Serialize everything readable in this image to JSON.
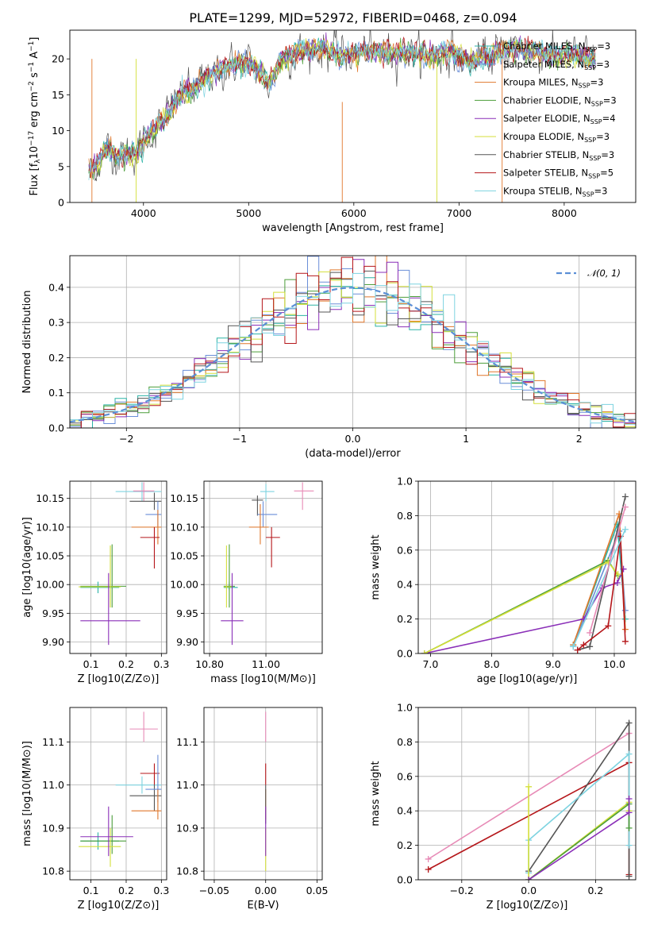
{
  "figure": {
    "title": "PLATE=1299, MJD=52972, FIBERID=0468, z=0.094"
  },
  "colors": {
    "Chabrier MILES": "#2bb3a6",
    "Salpeter MILES": "#6a8ed8",
    "Kroupa MILES": "#e0772b",
    "Chabrier ELODIE": "#4c9e3a",
    "Salpeter ELODIE": "#8a2fb8",
    "Kroupa ELODIE": "#d4df3a",
    "Chabrier STELIB": "#555555",
    "Salpeter STELIB": "#b5161a",
    "Kroupa STELIB": "#7dd3e0",
    "pink": "#e78ab6",
    "normal": "#5b8fd6"
  },
  "chart_data": [
    {
      "id": "spectrum",
      "type": "line",
      "title": "PLATE=1299, MJD=52972, FIBERID=0468, z=0.094",
      "xlabel": "wavelength [Angstrom, rest frame]",
      "ylabel": "Flux [f_λ 10^-17 erg cm^-2 s^-1 A^-1]",
      "xlim": [
        3300,
        8680
      ],
      "ylim": [
        0,
        24
      ],
      "xticks": [
        4000,
        5000,
        6000,
        7000,
        8000
      ],
      "yticks": [
        0,
        5,
        10,
        15,
        20
      ],
      "grid": false,
      "legend_position": "top-right",
      "spectrum_shape": {
        "x": [
          3480,
          3550,
          3650,
          3750,
          3850,
          3950,
          4000,
          4100,
          4200,
          4300,
          4400,
          4500,
          4600,
          4700,
          4800,
          4900,
          5000,
          5100,
          5200,
          5300,
          5500,
          5700,
          5900,
          6100,
          6300,
          6500,
          6700,
          6900,
          7100,
          7300,
          7500,
          7700,
          7900,
          8100,
          8300
        ],
        "y": [
          4.5,
          5.0,
          7.5,
          6.5,
          6.8,
          7.0,
          8.5,
          10.0,
          11.5,
          14.0,
          15.5,
          16.0,
          17.5,
          18.0,
          19.0,
          19.5,
          19.5,
          18.0,
          16.5,
          20.0,
          21.0,
          21.5,
          20.5,
          21.0,
          21.0,
          21.0,
          20.5,
          21.0,
          19.5,
          20.5,
          21.5,
          21.0,
          20.5,
          20.5,
          20.0
        ]
      },
      "series": [
        {
          "name": "Chabrier MILES, N_SSP=3"
        },
        {
          "name": "Salpeter MILES, N_SSP=3"
        },
        {
          "name": "Kroupa MILES, N_SSP=3"
        },
        {
          "name": "Chabrier ELODIE, N_SSP=3"
        },
        {
          "name": "Salpeter ELODIE, N_SSP=4"
        },
        {
          "name": "Kroupa ELODIE, N_SSP=3"
        },
        {
          "name": "Chabrier STELIB, N_SSP=3"
        },
        {
          "name": "Salpeter STELIB, N_SSP=5"
        },
        {
          "name": "Kroupa STELIB, N_SSP=3"
        }
      ]
    },
    {
      "id": "residuals",
      "type": "line",
      "xlabel": "(data-model)/error",
      "ylabel": "Normed distribution",
      "xlim": [
        -2.5,
        2.5
      ],
      "ylim": [
        0,
        0.49
      ],
      "xticks": [
        -2,
        -1,
        0,
        1,
        2
      ],
      "yticks": [
        0.0,
        0.1,
        0.2,
        0.3,
        0.4
      ],
      "grid": true,
      "legend_position": "top-right",
      "legend": "𝒩(0, 1)",
      "bin_width": 0.1
    },
    {
      "id": "z-age",
      "type": "scatter",
      "xlabel": "Z [log10(Z/Z⊙)]",
      "ylabel": "age [log10(age/yr)]",
      "xlim": [
        0.04,
        0.315
      ],
      "ylim": [
        9.88,
        10.18
      ],
      "xticks": [
        0.1,
        0.2,
        0.3
      ],
      "yticks": [
        9.9,
        9.95,
        10.0,
        10.05,
        10.1,
        10.15
      ],
      "grid": true,
      "points": [
        {
          "model": "Kroupa STELIB",
          "x": 0.245,
          "y": 10.162,
          "xerr": [
            0.17,
            0.3
          ],
          "yerr": [
            10.145,
            10.178
          ]
        },
        {
          "model": "pink",
          "x": 0.25,
          "y": 10.163,
          "xerr": [
            0.22,
            0.28
          ],
          "yerr": [
            10.145,
            10.178
          ]
        },
        {
          "model": "Chabrier STELIB",
          "x": 0.28,
          "y": 10.145,
          "xerr": [
            0.21,
            0.3
          ],
          "yerr": [
            10.13,
            10.16
          ]
        },
        {
          "model": "Salpeter MILES",
          "x": 0.29,
          "y": 10.122,
          "xerr": [
            0.255,
            0.3
          ],
          "yerr": [
            10.1,
            10.145
          ]
        },
        {
          "model": "Kroupa MILES",
          "x": 0.29,
          "y": 10.1,
          "xerr": [
            0.215,
            0.3
          ],
          "yerr": [
            10.07,
            10.13
          ]
        },
        {
          "model": "Salpeter STELIB",
          "x": 0.28,
          "y": 10.082,
          "xerr": [
            0.24,
            0.295
          ],
          "yerr": [
            10.028,
            10.1
          ]
        },
        {
          "model": "Chabrier MILES",
          "x": 0.12,
          "y": 9.995,
          "xerr": [
            0.07,
            0.18
          ],
          "yerr": [
            9.985,
            10.005
          ]
        },
        {
          "model": "Chabrier ELODIE",
          "x": 0.16,
          "y": 9.997,
          "xerr": [
            0.07,
            0.2
          ],
          "yerr": [
            9.96,
            10.07
          ]
        },
        {
          "model": "Kroupa ELODIE",
          "x": 0.155,
          "y": 9.996,
          "xerr": [
            0.065,
            0.185
          ],
          "yerr": [
            9.96,
            10.068
          ]
        },
        {
          "model": "Salpeter ELODIE",
          "x": 0.15,
          "y": 9.937,
          "xerr": [
            0.07,
            0.24
          ],
          "yerr": [
            9.895,
            10.02
          ]
        }
      ]
    },
    {
      "id": "mass-age",
      "type": "scatter",
      "xlabel": "mass [log10(M/M⊙)]",
      "ylabel": "",
      "xlim": [
        10.78,
        11.2
      ],
      "ylim": [
        9.88,
        10.18
      ],
      "xticks": [
        10.8,
        11.0
      ],
      "yticks": [
        9.9,
        9.95,
        10.0,
        10.05,
        10.1,
        10.15
      ],
      "grid": true,
      "points": [
        {
          "model": "pink",
          "x": 11.13,
          "y": 10.163,
          "xerr": [
            11.1,
            11.17
          ],
          "yerr": [
            10.13,
            10.178
          ]
        },
        {
          "model": "Kroupa STELIB",
          "x": 11.0,
          "y": 10.162,
          "xerr": [
            10.98,
            11.03
          ],
          "yerr": [
            10.145,
            10.175
          ]
        },
        {
          "model": "Chabrier STELIB",
          "x": 10.97,
          "y": 10.147,
          "xerr": [
            10.95,
            10.99
          ],
          "yerr": [
            10.12,
            10.155
          ]
        },
        {
          "model": "Salpeter MILES",
          "x": 10.99,
          "y": 10.122,
          "xerr": [
            10.97,
            11.04
          ],
          "yerr": [
            10.1,
            10.145
          ]
        },
        {
          "model": "Kroupa MILES",
          "x": 10.98,
          "y": 10.1,
          "xerr": [
            10.94,
            11.01
          ],
          "yerr": [
            10.07,
            10.14
          ]
        },
        {
          "model": "Salpeter STELIB",
          "x": 11.02,
          "y": 10.082,
          "xerr": [
            11.0,
            11.05
          ],
          "yerr": [
            10.03,
            10.1
          ]
        },
        {
          "model": "Chabrier MILES",
          "x": 10.87,
          "y": 9.995,
          "xerr": [
            10.85,
            10.9
          ],
          "yerr": [
            9.99,
            10.005
          ]
        },
        {
          "model": "Chabrier ELODIE",
          "x": 10.87,
          "y": 9.997,
          "xerr": [
            10.85,
            10.89
          ],
          "yerr": [
            9.96,
            10.07
          ]
        },
        {
          "model": "Kroupa ELODIE",
          "x": 10.86,
          "y": 9.996,
          "xerr": [
            10.85,
            10.88
          ],
          "yerr": [
            9.96,
            10.068
          ]
        },
        {
          "model": "Salpeter ELODIE",
          "x": 10.88,
          "y": 9.937,
          "xerr": [
            10.84,
            10.92
          ],
          "yerr": [
            9.895,
            10.02
          ]
        }
      ]
    },
    {
      "id": "age-weight",
      "type": "line",
      "xlabel": "age [log10(age/yr)]",
      "ylabel": "mass weight",
      "xlim": [
        6.8,
        10.35
      ],
      "ylim": [
        0,
        1.0
      ],
      "xticks": [
        7,
        8,
        9,
        10
      ],
      "yticks": [
        0.0,
        0.2,
        0.4,
        0.6,
        0.8,
        1.0
      ],
      "grid": true,
      "series": [
        {
          "model": "Chabrier MILES",
          "x": [
            9.33,
            10.05,
            10.18
          ],
          "y": [
            0.05,
            0.75,
            0.2
          ]
        },
        {
          "model": "Salpeter MILES",
          "x": [
            9.33,
            10.08,
            10.18
          ],
          "y": [
            0.04,
            0.71,
            0.25
          ]
        },
        {
          "model": "Kroupa MILES",
          "x": [
            9.33,
            10.08,
            10.18
          ],
          "y": [
            0.05,
            0.81,
            0.14
          ]
        },
        {
          "model": "Chabrier ELODIE",
          "x": [
            6.9,
            9.9,
            10.06
          ],
          "y": [
            0.0,
            0.54,
            0.45
          ]
        },
        {
          "model": "Salpeter ELODIE",
          "x": [
            6.9,
            9.5,
            9.8,
            10.05,
            10.15
          ],
          "y": [
            0.0,
            0.2,
            0.38,
            0.41,
            0.49
          ]
        },
        {
          "model": "Kroupa ELODIE",
          "x": [
            6.9,
            9.9,
            10.06
          ],
          "y": [
            0.0,
            0.53,
            0.46
          ]
        },
        {
          "model": "Chabrier STELIB",
          "x": [
            9.4,
            9.6,
            10.18
          ],
          "y": [
            0.02,
            0.04,
            0.91
          ]
        },
        {
          "model": "Salpeter STELIB",
          "x": [
            9.4,
            9.5,
            9.9,
            10.1,
            10.18
          ],
          "y": [
            0.02,
            0.05,
            0.16,
            0.68,
            0.07
          ]
        },
        {
          "model": "Kroupa STELIB",
          "x": [
            9.33,
            10.18
          ],
          "y": [
            0.04,
            0.72
          ]
        },
        {
          "model": "pink",
          "x": [
            9.6,
            10.18
          ],
          "y": [
            0.12,
            0.85
          ]
        }
      ]
    },
    {
      "id": "z-mass",
      "type": "scatter",
      "xlabel": "Z [log10(Z/Z⊙)]",
      "ylabel": "mass [log10(M/M⊙)]",
      "xlim": [
        0.04,
        0.315
      ],
      "ylim": [
        10.78,
        11.18
      ],
      "xticks": [
        0.1,
        0.2,
        0.3
      ],
      "yticks": [
        10.8,
        10.9,
        11.0,
        11.1
      ],
      "grid": true,
      "points": [
        {
          "model": "pink",
          "x": 0.25,
          "y": 11.13,
          "xerr": [
            0.21,
            0.29
          ],
          "yerr": [
            11.1,
            11.17
          ]
        },
        {
          "model": "Kroupa STELIB",
          "x": 0.245,
          "y": 11.0,
          "xerr": [
            0.17,
            0.3
          ],
          "yerr": [
            10.98,
            11.02
          ]
        },
        {
          "model": "Salpeter STELIB",
          "x": 0.28,
          "y": 11.027,
          "xerr": [
            0.24,
            0.295
          ],
          "yerr": [
            11.0,
            11.05
          ]
        },
        {
          "model": "Chabrier STELIB",
          "x": 0.28,
          "y": 10.975,
          "xerr": [
            0.21,
            0.3
          ],
          "yerr": [
            10.94,
            11.0
          ]
        },
        {
          "model": "Salpeter MILES",
          "x": 0.29,
          "y": 10.99,
          "xerr": [
            0.255,
            0.3
          ],
          "yerr": [
            10.96,
            11.07
          ]
        },
        {
          "model": "Kroupa MILES",
          "x": 0.29,
          "y": 10.94,
          "xerr": [
            0.215,
            0.3
          ],
          "yerr": [
            10.92,
            10.99
          ]
        },
        {
          "model": "Chabrier MILES",
          "x": 0.12,
          "y": 10.87,
          "xerr": [
            0.07,
            0.18
          ],
          "yerr": [
            10.85,
            10.89
          ]
        },
        {
          "model": "Chabrier ELODIE",
          "x": 0.16,
          "y": 10.87,
          "xerr": [
            0.07,
            0.2
          ],
          "yerr": [
            10.84,
            10.93
          ]
        },
        {
          "model": "Kroupa ELODIE",
          "x": 0.155,
          "y": 10.857,
          "xerr": [
            0.065,
            0.185
          ],
          "yerr": [
            10.81,
            10.9
          ]
        },
        {
          "model": "Salpeter ELODIE",
          "x": 0.15,
          "y": 10.88,
          "xerr": [
            0.07,
            0.22
          ],
          "yerr": [
            10.835,
            10.95
          ]
        }
      ]
    },
    {
      "id": "ebv-mass",
      "type": "scatter",
      "xlabel": "E(B-V)",
      "ylabel": "",
      "xlim": [
        -0.06,
        0.055
      ],
      "ylim": [
        10.78,
        11.18
      ],
      "xticks": [
        -0.05,
        0.0,
        0.05
      ],
      "yticks": [
        10.8,
        10.9,
        11.0,
        11.1
      ],
      "grid": true,
      "points": [
        {
          "model": "pink",
          "x": 0.0,
          "y": 11.13,
          "xerr": [
            0.0,
            0.0
          ],
          "yerr": [
            11.1,
            11.17
          ]
        },
        {
          "model": "Salpeter STELIB",
          "x": 0.0,
          "y": 11.027,
          "xerr": [
            0.0,
            0.0
          ],
          "yerr": [
            11.0,
            11.05
          ]
        },
        {
          "model": "Kroupa MILES",
          "x": 0.0,
          "y": 10.94,
          "xerr": [
            0.0,
            0.0
          ],
          "yerr": [
            10.92,
            10.99
          ]
        },
        {
          "model": "Chabrier STELIB",
          "x": 0.0,
          "y": 10.975,
          "xerr": [
            0.0,
            0.0
          ],
          "yerr": [
            10.91,
            11.0
          ]
        },
        {
          "model": "Kroupa ELODIE",
          "x": 0.0,
          "y": 10.857,
          "xerr": [
            0.0,
            0.0
          ],
          "yerr": [
            10.8,
            10.9
          ]
        },
        {
          "model": "Salpeter ELODIE",
          "x": 0.0,
          "y": 10.88,
          "xerr": [
            0.0,
            0.0
          ],
          "yerr": [
            10.835,
            10.95
          ]
        }
      ]
    },
    {
      "id": "z-weight",
      "type": "line",
      "xlabel": "Z [log10(Z/Z⊙)]",
      "ylabel": "mass weight",
      "xlim": [
        -0.33,
        0.32
      ],
      "ylim": [
        0,
        1.0
      ],
      "xticks": [
        -0.2,
        0.0,
        0.2
      ],
      "yticks": [
        0.0,
        0.2,
        0.4,
        0.6,
        0.8,
        1.0
      ],
      "grid": true,
      "series": [
        {
          "model": "pink",
          "x": [
            -0.3,
            0.3
          ],
          "y": [
            0.12,
            0.85
          ]
        },
        {
          "model": "Salpeter STELIB",
          "x": [
            -0.3,
            0.3,
            0.3
          ],
          "y": [
            0.06,
            0.68,
            0.03
          ]
        },
        {
          "model": "Chabrier STELIB",
          "x": [
            0.0,
            0.3,
            0.3
          ],
          "y": [
            0.05,
            0.91,
            0.02
          ]
        },
        {
          "model": "Kroupa STELIB",
          "x": [
            0.0,
            0.0,
            0.3,
            0.3
          ],
          "y": [
            0.04,
            0.23,
            0.73,
            0.2
          ]
        },
        {
          "model": "Kroupa ELODIE",
          "x": [
            0.0,
            0.0,
            0.3,
            0.3
          ],
          "y": [
            0.54,
            0.0,
            0.45,
            0.4
          ]
        },
        {
          "model": "Chabrier ELODIE",
          "x": [
            0.0,
            0.3,
            0.3
          ],
          "y": [
            0.0,
            0.44,
            0.3
          ]
        },
        {
          "model": "Salpeter ELODIE",
          "x": [
            0.0,
            0.3,
            0.3
          ],
          "y": [
            0.0,
            0.39,
            0.47
          ]
        }
      ]
    }
  ]
}
